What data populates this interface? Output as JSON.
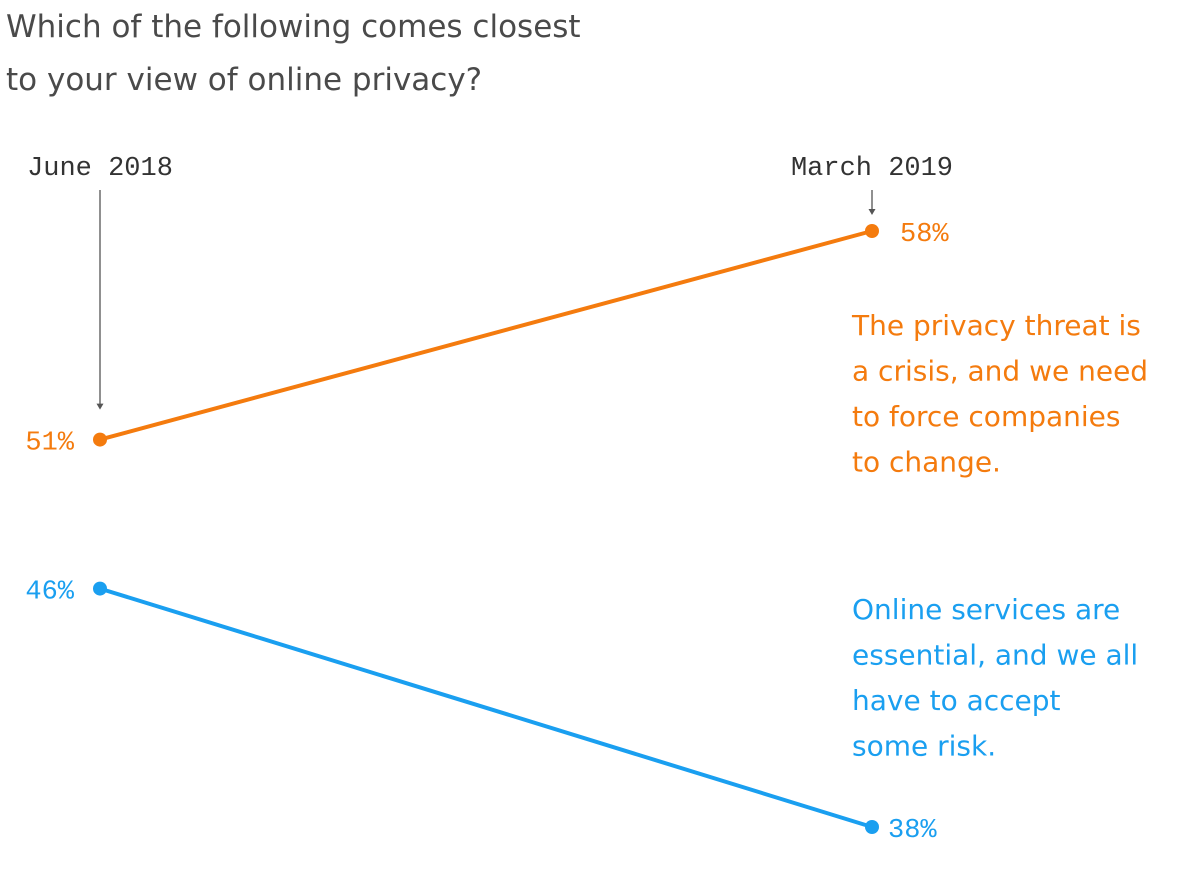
{
  "title_lines": [
    "Which of the following comes closest",
    "to your view of online privacy?"
  ],
  "chart_data": {
    "type": "line",
    "x": [
      "June 2018",
      "March 2019"
    ],
    "ylim": [
      38,
      58
    ],
    "series": [
      {
        "name": "The privacy threat is a crisis, and we need to force companies to change.",
        "name_lines": [
          "The privacy threat is",
          "a crisis, and we need",
          "to force companies",
          "to change."
        ],
        "values": [
          51,
          58
        ],
        "labels": [
          "51%",
          "58%"
        ],
        "color": "#f47b0e"
      },
      {
        "name": "Online services are essential, and we all have to accept some risk.",
        "name_lines": [
          "Online services are",
          "essential, and we all",
          "have to accept",
          "some risk."
        ],
        "values": [
          46,
          38
        ],
        "labels": [
          "46%",
          "38%"
        ],
        "color": "#1a9ff0"
      }
    ]
  },
  "colors": {
    "title": "#4a4a4a",
    "date_labels": "#333333",
    "arrows": "#555555"
  }
}
